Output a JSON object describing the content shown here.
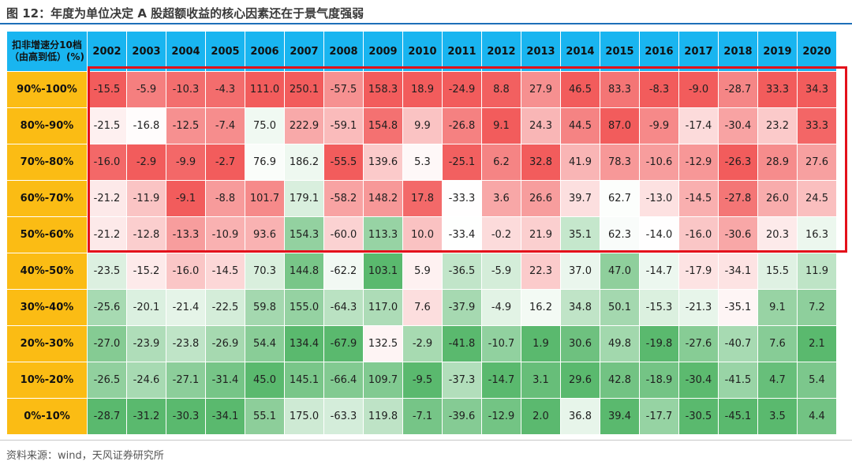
{
  "title": "图 12：年度为单位决定 A 股超额收益的核心因素还在于景气度强弱",
  "source": "资料来源：wind，天风证券研究所",
  "colors": {
    "header": "#19b5f0",
    "row_label": "#fbbc14",
    "highlight_frame": "#e3111b",
    "low": "#5ab96e",
    "mid": "#ffffff",
    "high": "#f25c5c"
  },
  "chart_data": {
    "type": "heatmap",
    "corner_label": "扣非增速分10档（由高到低）(%)",
    "x": [
      "2002",
      "2003",
      "2004",
      "2005",
      "2006",
      "2007",
      "2008",
      "2009",
      "2010",
      "2011",
      "2012",
      "2013",
      "2014",
      "2015",
      "2016",
      "2017",
      "2018",
      "2019",
      "2020"
    ],
    "y": [
      "90%-100%",
      "80%-90%",
      "70%-80%",
      "60%-70%",
      "50%-60%",
      "40%-50%",
      "30%-40%",
      "20%-30%",
      "10%-20%",
      "0%-10%"
    ],
    "values": [
      [
        -15.5,
        -5.9,
        -10.3,
        -4.3,
        111.0,
        250.1,
        -57.5,
        158.3,
        18.9,
        -24.9,
        8.8,
        27.9,
        46.5,
        83.3,
        -8.3,
        -9.0,
        -28.7,
        33.3,
        34.3
      ],
      [
        -21.5,
        -16.8,
        -12.5,
        -7.4,
        75.0,
        222.9,
        -59.1,
        154.8,
        9.9,
        -26.8,
        9.1,
        24.3,
        44.5,
        87.0,
        -9.9,
        -17.4,
        -30.4,
        23.2,
        33.3
      ],
      [
        -16.0,
        -2.9,
        -9.9,
        -2.7,
        76.9,
        186.2,
        -55.5,
        139.6,
        5.3,
        -25.1,
        6.2,
        32.8,
        41.9,
        78.3,
        -10.6,
        -12.9,
        -26.3,
        28.9,
        27.6
      ],
      [
        -21.2,
        -11.9,
        -9.1,
        -8.8,
        101.7,
        179.1,
        -58.2,
        148.2,
        17.8,
        -33.3,
        3.6,
        26.6,
        39.7,
        62.7,
        -13.0,
        -14.5,
        -27.8,
        26.0,
        24.5
      ],
      [
        -21.2,
        -12.8,
        -13.3,
        -10.9,
        93.6,
        154.3,
        -60.0,
        113.3,
        10.0,
        -33.4,
        -0.2,
        21.9,
        35.1,
        62.3,
        -14.0,
        -16.0,
        -30.6,
        20.3,
        16.3
      ],
      [
        -23.5,
        -15.2,
        -16.0,
        -14.5,
        70.3,
        144.8,
        -62.2,
        103.1,
        5.9,
        -36.5,
        -5.9,
        22.3,
        37.0,
        47.0,
        -14.7,
        -17.9,
        -34.1,
        15.5,
        11.9
      ],
      [
        -25.6,
        -20.1,
        -21.4,
        -22.5,
        59.8,
        155.0,
        -64.3,
        117.0,
        7.6,
        -37.9,
        -4.9,
        16.2,
        34.8,
        50.1,
        -15.3,
        -21.3,
        -35.1,
        9.1,
        7.2
      ],
      [
        -27.0,
        -23.9,
        -23.8,
        -26.9,
        54.4,
        134.4,
        -67.9,
        132.5,
        -2.9,
        -41.8,
        -10.7,
        1.9,
        30.6,
        49.8,
        -19.8,
        -27.6,
        -40.7,
        7.6,
        2.1
      ],
      [
        -26.5,
        -24.6,
        -27.1,
        -31.4,
        45.0,
        145.1,
        -66.4,
        109.7,
        -9.5,
        -37.3,
        -14.7,
        3.1,
        29.6,
        42.8,
        -18.9,
        -30.4,
        -41.5,
        4.7,
        5.4
      ],
      [
        -28.7,
        -31.2,
        -30.3,
        -34.1,
        55.1,
        175.0,
        -63.3,
        119.8,
        -7.1,
        -39.6,
        -12.9,
        2.0,
        36.8,
        39.4,
        -17.7,
        -30.5,
        -45.1,
        3.5,
        4.4
      ]
    ],
    "highlighted_rows": [
      "90%-100%",
      "80%-90%",
      "70%-80%",
      "60%-70%",
      "50%-60%"
    ]
  }
}
